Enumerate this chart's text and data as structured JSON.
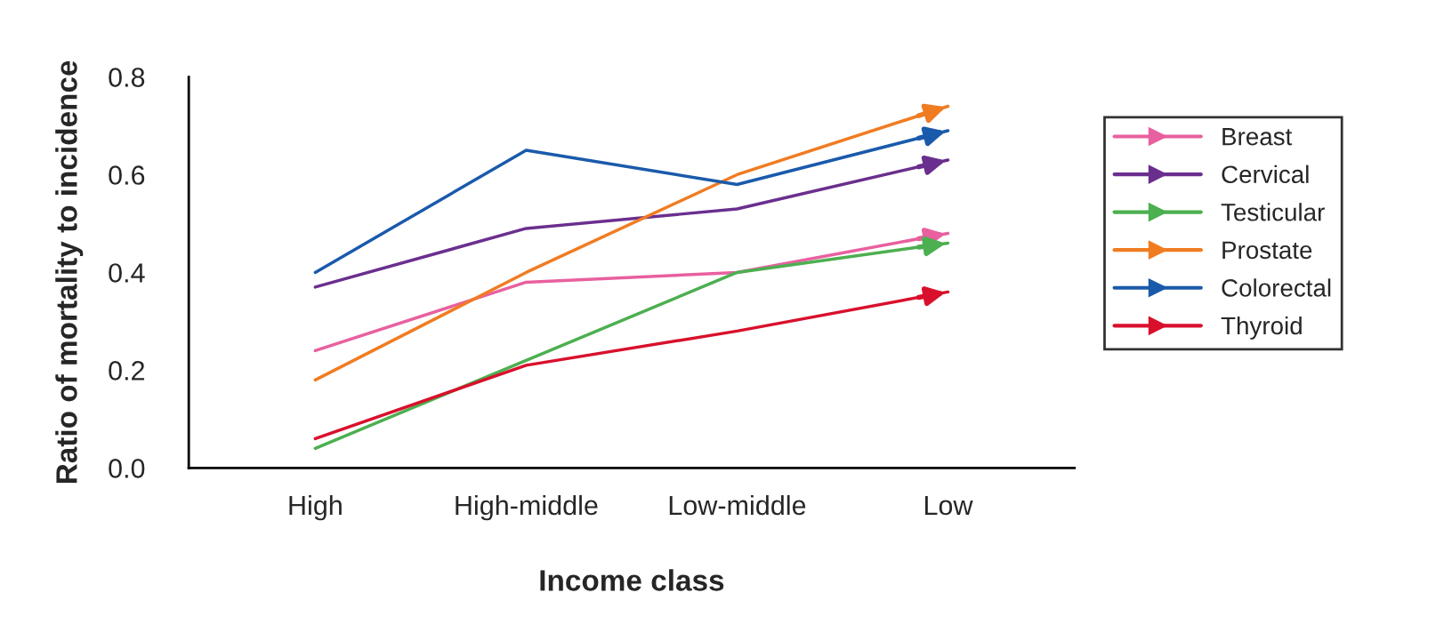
{
  "chart_data": {
    "type": "line",
    "xlabel": "Income class",
    "ylabel": "Ratio of mortality to incidence",
    "categories": [
      "High",
      "High-middle",
      "Low-middle",
      "Low"
    ],
    "series": [
      {
        "name": "Breast",
        "color": "#e8609f",
        "values": [
          0.24,
          0.38,
          0.4,
          0.48
        ]
      },
      {
        "name": "Cervical",
        "color": "#6a2f8e",
        "values": [
          0.37,
          0.49,
          0.53,
          0.63
        ]
      },
      {
        "name": "Testicular",
        "color": "#4caf50",
        "values": [
          0.04,
          0.22,
          0.4,
          0.46
        ]
      },
      {
        "name": "Prostate",
        "color": "#f07c22",
        "values": [
          0.18,
          0.4,
          0.6,
          0.74
        ]
      },
      {
        "name": "Colorectal",
        "color": "#1a5aab",
        "values": [
          0.4,
          0.65,
          0.58,
          0.69
        ]
      },
      {
        "name": "Thyroid",
        "color": "#d9102c",
        "values": [
          0.06,
          0.21,
          0.28,
          0.36
        ]
      }
    ],
    "ylim": [
      0,
      0.8
    ],
    "yticks": [
      {
        "value": 0,
        "label": "0.0"
      },
      {
        "value": 0.2,
        "label": "0.2"
      },
      {
        "value": 0.4,
        "label": "0.4"
      },
      {
        "value": 0.6,
        "label": "0.6"
      },
      {
        "value": 0.8,
        "label": "0.8"
      }
    ],
    "grid": false,
    "legend": "right"
  }
}
